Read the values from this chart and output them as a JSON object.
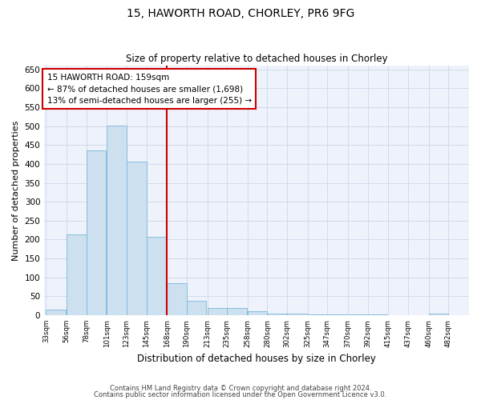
{
  "title1": "15, HAWORTH ROAD, CHORLEY, PR6 9FG",
  "title2": "Size of property relative to detached houses in Chorley",
  "xlabel": "Distribution of detached houses by size in Chorley",
  "ylabel": "Number of detached properties",
  "property_label": "15 HAWORTH ROAD: 159sqm",
  "annotation_line1": "← 87% of detached houses are smaller (1,698)",
  "annotation_line2": "13% of semi-detached houses are larger (255) →",
  "bar_color": "#cce0f0",
  "bar_edge_color": "#7ab8d8",
  "vline_color": "#cc0000",
  "bins_left_edges": [
    33,
    56,
    78,
    101,
    123,
    145,
    168,
    190,
    213,
    235,
    258,
    280,
    302,
    325,
    347,
    370,
    392,
    415,
    437,
    460,
    482
  ],
  "bin_width": 23,
  "bar_heights": [
    15,
    213,
    435,
    502,
    407,
    207,
    85,
    38,
    19,
    18,
    11,
    5,
    4,
    3,
    2,
    1,
    1,
    0,
    0,
    4,
    0
  ],
  "tick_labels": [
    "33sqm",
    "56sqm",
    "78sqm",
    "101sqm",
    "123sqm",
    "145sqm",
    "168sqm",
    "190sqm",
    "213sqm",
    "235sqm",
    "258sqm",
    "280sqm",
    "302sqm",
    "325sqm",
    "347sqm",
    "370sqm",
    "392sqm",
    "415sqm",
    "437sqm",
    "460sqm",
    "482sqm"
  ],
  "ylim": [
    0,
    660
  ],
  "yticks": [
    0,
    50,
    100,
    150,
    200,
    250,
    300,
    350,
    400,
    450,
    500,
    550,
    600,
    650
  ],
  "grid_color": "#cdd6e8",
  "bg_color": "#eef2fb",
  "fig_color": "#ffffff",
  "footer1": "Contains HM Land Registry data © Crown copyright and database right 2024.",
  "footer2": "Contains public sector information licensed under the Open Government Licence v3.0.",
  "vline_x_index": 6
}
